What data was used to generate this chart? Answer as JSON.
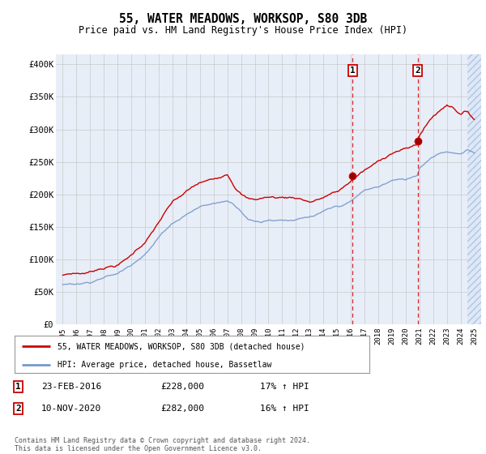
{
  "title": "55, WATER MEADOWS, WORKSOP, S80 3DB",
  "subtitle": "Price paid vs. HM Land Registry's House Price Index (HPI)",
  "ylabel_ticks": [
    "£0",
    "£50K",
    "£100K",
    "£150K",
    "£200K",
    "£250K",
    "£300K",
    "£350K",
    "£400K"
  ],
  "ytick_values": [
    0,
    50000,
    100000,
    150000,
    200000,
    250000,
    300000,
    350000,
    400000
  ],
  "ylim": [
    0,
    415000
  ],
  "xlim_start": 1994.5,
  "xlim_end": 2025.5,
  "background_color": "#ffffff",
  "plot_bg_color": "#e8eef8",
  "grid_color": "#c8c8c8",
  "red_line_color": "#cc0000",
  "blue_line_color": "#7799cc",
  "marker1_date": 2016.13,
  "marker1_value": 228000,
  "marker2_date": 2020.87,
  "marker2_value": 282000,
  "marker1_label": "23-FEB-2016",
  "marker1_price": "£228,000",
  "marker1_hpi": "17% ↑ HPI",
  "marker2_label": "10-NOV-2020",
  "marker2_price": "£282,000",
  "marker2_hpi": "16% ↑ HPI",
  "legend_line1": "55, WATER MEADOWS, WORKSOP, S80 3DB (detached house)",
  "legend_line2": "HPI: Average price, detached house, Bassetlaw",
  "footnote": "Contains HM Land Registry data © Crown copyright and database right 2024.\nThis data is licensed under the Open Government Licence v3.0.",
  "xtick_years": [
    1995,
    1996,
    1997,
    1998,
    1999,
    2000,
    2001,
    2002,
    2003,
    2004,
    2005,
    2006,
    2007,
    2008,
    2009,
    2010,
    2011,
    2012,
    2013,
    2014,
    2015,
    2016,
    2017,
    2018,
    2019,
    2020,
    2021,
    2022,
    2023,
    2024,
    2025
  ],
  "hatch_start": 2024.5
}
